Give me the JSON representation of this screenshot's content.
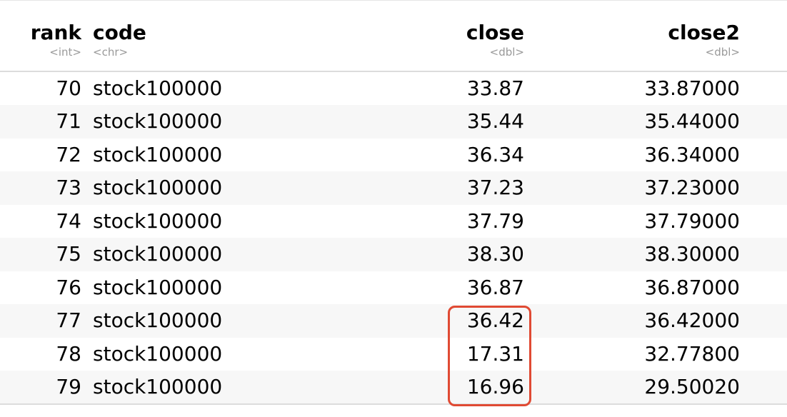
{
  "table": {
    "columns": [
      {
        "name": "rank",
        "type": "<int>"
      },
      {
        "name": "code",
        "type": "<chr>"
      },
      {
        "name": "close",
        "type": "<dbl>"
      },
      {
        "name": "close2",
        "type": "<dbl>"
      }
    ],
    "rows": [
      {
        "rank": "70",
        "code": "stock100000",
        "close": "33.87",
        "close2": "33.87000"
      },
      {
        "rank": "71",
        "code": "stock100000",
        "close": "35.44",
        "close2": "35.44000"
      },
      {
        "rank": "72",
        "code": "stock100000",
        "close": "36.34",
        "close2": "36.34000"
      },
      {
        "rank": "73",
        "code": "stock100000",
        "close": "37.23",
        "close2": "37.23000"
      },
      {
        "rank": "74",
        "code": "stock100000",
        "close": "37.79",
        "close2": "37.79000"
      },
      {
        "rank": "75",
        "code": "stock100000",
        "close": "38.30",
        "close2": "38.30000"
      },
      {
        "rank": "76",
        "code": "stock100000",
        "close": "36.87",
        "close2": "36.87000"
      },
      {
        "rank": "77",
        "code": "stock100000",
        "close": "36.42",
        "close2": "36.42000"
      },
      {
        "rank": "78",
        "code": "stock100000",
        "close": "17.31",
        "close2": "32.77800"
      },
      {
        "rank": "79",
        "code": "stock100000",
        "close": "16.96",
        "close2": "29.50020"
      }
    ]
  },
  "annotation": {
    "color": "#e04a33"
  }
}
